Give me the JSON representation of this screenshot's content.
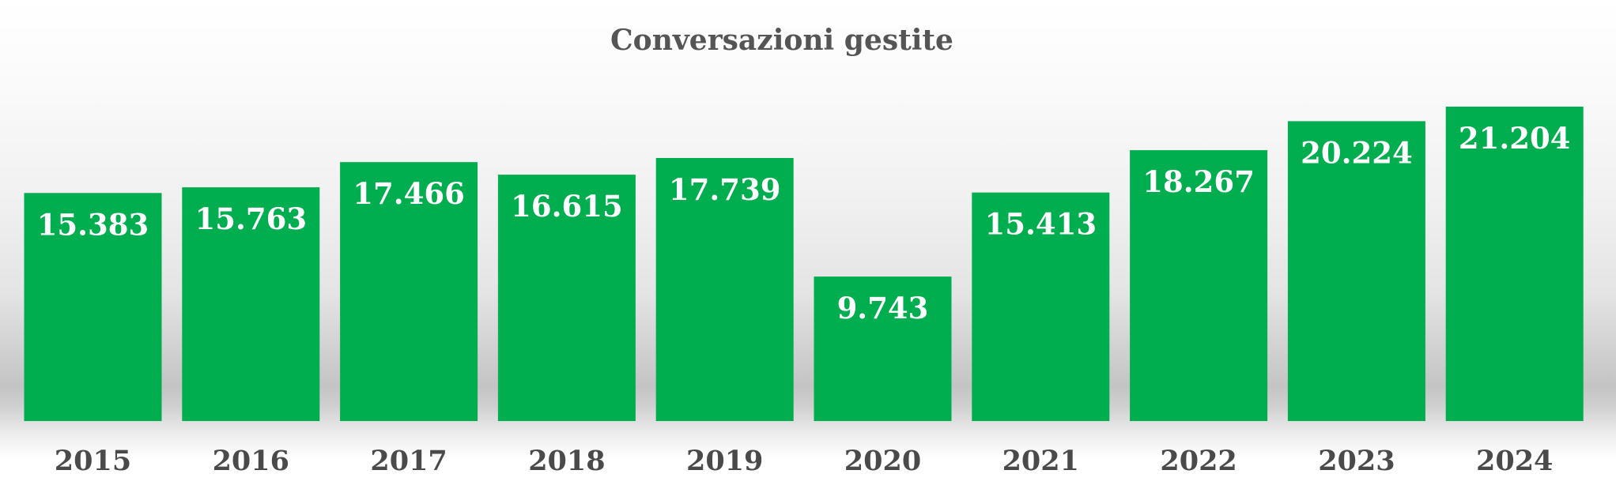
{
  "chart_data": {
    "type": "bar",
    "title": "Conversazioni gestite",
    "xlabel": "",
    "ylabel": "",
    "categories": [
      "2015",
      "2016",
      "2017",
      "2018",
      "2019",
      "2020",
      "2021",
      "2022",
      "2023",
      "2024"
    ],
    "values": [
      15383,
      15763,
      17466,
      16615,
      17739,
      9743,
      15413,
      18267,
      20224,
      21204
    ],
    "data_labels": [
      "15.383",
      "15.763",
      "17.466",
      "16.615",
      "17.739",
      "9.743",
      "15.413",
      "18.267",
      "20.224",
      "21.204"
    ],
    "ylim": [
      0,
      21204
    ],
    "grid": false,
    "legend": "none",
    "bar_color": "#00ad4f",
    "label_color": "#ffffff"
  }
}
